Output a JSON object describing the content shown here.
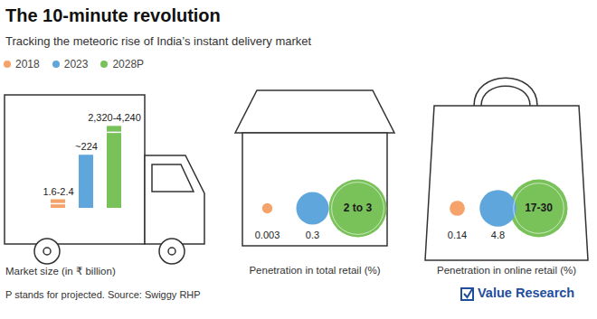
{
  "title": "The 10-minute revolution",
  "subtitle": "Tracking the meteoric rise of India’s instant delivery market",
  "note": "P stands for projected. Source: Swiggy RHP",
  "logo": "Value Research",
  "chart_data": [
    {
      "type": "bar",
      "title": "Market size (in ₹ billion)",
      "categories": [
        "2018",
        "2023",
        "2028P"
      ],
      "values": [
        2.4,
        224,
        4240
      ],
      "values_low": [
        1.6,
        224,
        2320
      ],
      "value_labels": [
        "1.6-2.4",
        "~224",
        "2,320-4,240"
      ],
      "colors": [
        "#f5a26b",
        "#5ea6db",
        "#79c25a"
      ],
      "log": "y",
      "ylim": [
        1,
        10000
      ],
      "tick_labels": false,
      "data_labels": true,
      "legend": "top-left"
    },
    {
      "type": "bubble",
      "title": "Penetration in total retail (%)",
      "categories": [
        "2018",
        "2023",
        "2028P"
      ],
      "values": [
        0.003,
        0.3,
        3
      ],
      "values_low": [
        0.003,
        0.3,
        2
      ],
      "value_labels": [
        "0.003",
        "0.3",
        "2 to 3"
      ],
      "colors": [
        "#f5a26b",
        "#5ea6db",
        "#79c25a"
      ],
      "tick_labels": false,
      "data_labels": true
    },
    {
      "type": "bubble",
      "title": "Penetration in online retail (%)",
      "categories": [
        "2018",
        "2023",
        "2028P"
      ],
      "values": [
        0.14,
        4.8,
        30
      ],
      "values_low": [
        0.14,
        4.8,
        17
      ],
      "value_labels": [
        "0.14",
        "4.8",
        "17-30"
      ],
      "colors": [
        "#f5a26b",
        "#5ea6db",
        "#79c25a"
      ],
      "tick_labels": false,
      "data_labels": true
    }
  ]
}
